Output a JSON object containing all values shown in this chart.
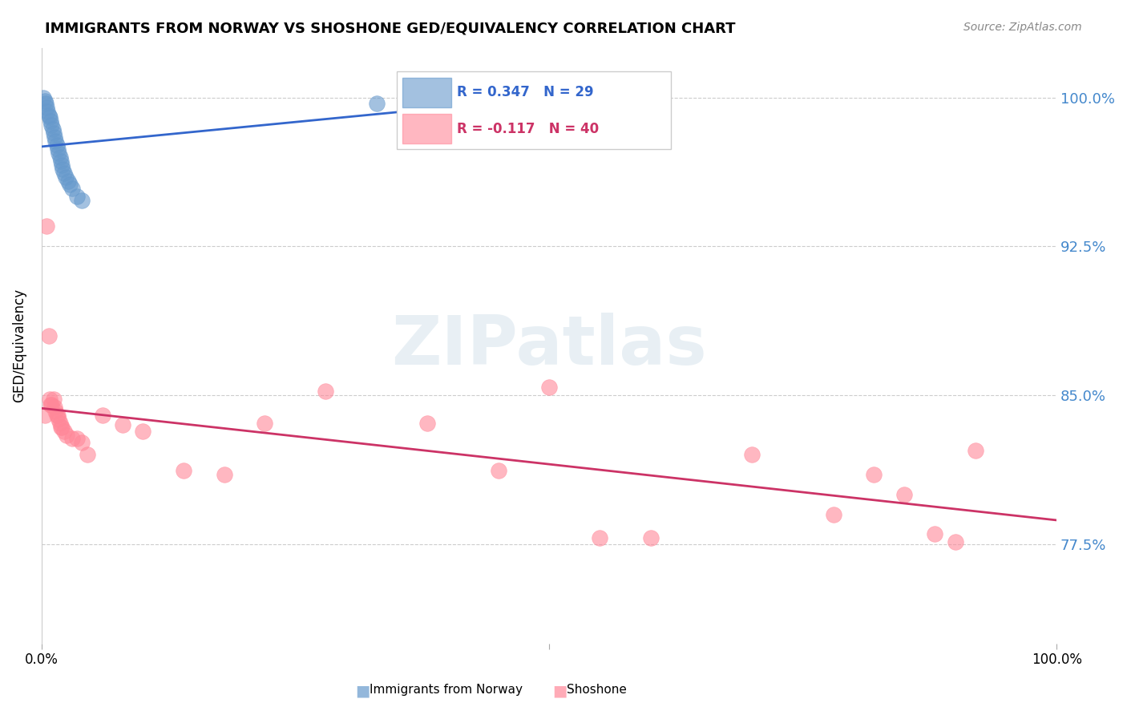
{
  "title": "IMMIGRANTS FROM NORWAY VS SHOSHONE GED/EQUIVALENCY CORRELATION CHART",
  "source": "Source: ZipAtlas.com",
  "ylabel": "GED/Equivalency",
  "norway_R": 0.347,
  "norway_N": 29,
  "shoshone_R": -0.117,
  "shoshone_N": 40,
  "norway_color": "#6699CC",
  "shoshone_color": "#FF8899",
  "norway_line_color": "#3366CC",
  "shoshone_line_color": "#CC3366",
  "watermark_color": "#CCDDEE",
  "ytick_vals": [
    0.775,
    0.85,
    0.925,
    1.0
  ],
  "ytick_labels": [
    "77.5%",
    "85.0%",
    "92.5%",
    "100.0%"
  ],
  "xlim": [
    0.0,
    1.0
  ],
  "ylim": [
    0.725,
    1.025
  ],
  "norway_x": [
    0.002,
    0.003,
    0.004,
    0.005,
    0.006,
    0.007,
    0.008,
    0.009,
    0.01,
    0.011,
    0.012,
    0.013,
    0.014,
    0.015,
    0.016,
    0.017,
    0.018,
    0.019,
    0.02,
    0.021,
    0.022,
    0.024,
    0.026,
    0.028,
    0.03,
    0.035,
    0.04,
    0.33,
    0.36
  ],
  "norway_y": [
    1.0,
    0.998,
    0.997,
    0.995,
    0.993,
    0.991,
    0.99,
    0.988,
    0.986,
    0.984,
    0.982,
    0.98,
    0.978,
    0.976,
    0.974,
    0.972,
    0.97,
    0.968,
    0.966,
    0.964,
    0.962,
    0.96,
    0.958,
    0.956,
    0.954,
    0.95,
    0.948,
    0.997,
    1.0
  ],
  "shoshone_x": [
    0.003,
    0.005,
    0.007,
    0.008,
    0.009,
    0.01,
    0.012,
    0.013,
    0.014,
    0.015,
    0.016,
    0.017,
    0.018,
    0.019,
    0.02,
    0.022,
    0.025,
    0.03,
    0.035,
    0.04,
    0.045,
    0.06,
    0.08,
    0.1,
    0.14,
    0.18,
    0.22,
    0.28,
    0.38,
    0.45,
    0.5,
    0.55,
    0.6,
    0.7,
    0.78,
    0.82,
    0.85,
    0.88,
    0.9,
    0.92
  ],
  "shoshone_y": [
    0.84,
    0.935,
    0.88,
    0.848,
    0.845,
    0.845,
    0.848,
    0.844,
    0.842,
    0.84,
    0.84,
    0.838,
    0.836,
    0.834,
    0.834,
    0.832,
    0.83,
    0.828,
    0.828,
    0.826,
    0.82,
    0.84,
    0.835,
    0.832,
    0.812,
    0.81,
    0.836,
    0.852,
    0.836,
    0.812,
    0.854,
    0.778,
    0.778,
    0.82,
    0.79,
    0.81,
    0.8,
    0.78,
    0.776,
    0.822
  ]
}
